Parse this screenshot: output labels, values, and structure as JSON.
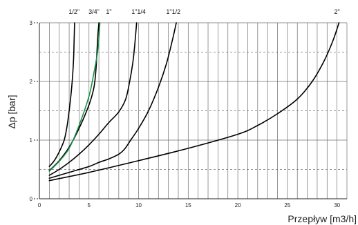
{
  "chart_data": {
    "type": "line",
    "title": "",
    "xlabel": "Przepływ [m3/h]",
    "ylabel": "Δp [bar]",
    "xlim": [
      0,
      31
    ],
    "ylim": [
      0,
      3
    ],
    "grid": true,
    "x_ticks": [
      0,
      5,
      10,
      15,
      20,
      25,
      30
    ],
    "x_tick_labels": [
      "0",
      "5",
      "10",
      "15",
      "20",
      "25",
      "30"
    ],
    "y_ticks": [
      0,
      1,
      2,
      3
    ],
    "y_tick_labels": [
      "0",
      "1",
      "2",
      "3"
    ],
    "series": [
      {
        "name": "1/2\"",
        "label_x": 3.5,
        "color": "#000000",
        "points": [
          [
            1,
            0.55
          ],
          [
            1.5,
            0.65
          ],
          [
            2,
            0.8
          ],
          [
            2.5,
            1.0
          ],
          [
            2.8,
            1.25
          ],
          [
            3.0,
            1.5
          ],
          [
            3.2,
            1.8
          ],
          [
            3.35,
            2.1
          ],
          [
            3.45,
            2.4
          ],
          [
            3.5,
            2.7
          ],
          [
            3.55,
            3.0
          ]
        ]
      },
      {
        "name": "3/4\"",
        "label_x": 5.5,
        "color": "#000000",
        "points": [
          [
            1,
            0.48
          ],
          [
            2,
            0.65
          ],
          [
            3,
            0.88
          ],
          [
            4,
            1.2
          ],
          [
            5,
            1.6
          ],
          [
            5.5,
            1.9
          ],
          [
            5.7,
            2.2
          ],
          [
            5.8,
            2.5
          ],
          [
            5.9,
            2.8
          ],
          [
            6.0,
            3.0
          ]
        ]
      },
      {
        "name": "3/4\" (green)",
        "label_x": null,
        "color": "#1a8f4a",
        "points": [
          [
            1,
            0.47
          ],
          [
            2,
            0.64
          ],
          [
            3,
            0.86
          ],
          [
            4,
            1.25
          ],
          [
            5,
            1.75
          ],
          [
            5.5,
            2.15
          ],
          [
            5.9,
            2.55
          ],
          [
            6.1,
            3.0
          ]
        ]
      },
      {
        "name": "1\"",
        "label_x": 7.0,
        "color": "#000000",
        "points": [
          [
            1,
            0.4
          ],
          [
            2,
            0.5
          ],
          [
            3,
            0.62
          ],
          [
            4,
            0.76
          ],
          [
            5,
            0.92
          ],
          [
            6,
            1.1
          ],
          [
            7,
            1.3
          ],
          [
            8,
            1.48
          ],
          [
            8.7,
            1.7
          ],
          [
            9.1,
            2.0
          ],
          [
            9.4,
            2.3
          ],
          [
            9.6,
            2.6
          ],
          [
            9.8,
            3.0
          ]
        ]
      },
      {
        "name": "1\"1/4",
        "label_x": 10.0,
        "color": "#000000",
        "points": [
          [
            1,
            0.35
          ],
          [
            3,
            0.45
          ],
          [
            5,
            0.55
          ],
          [
            6,
            0.62
          ],
          [
            7,
            0.68
          ],
          [
            8,
            0.76
          ],
          [
            8.6,
            0.85
          ],
          [
            9.2,
            1.0
          ],
          [
            10,
            1.2
          ],
          [
            11,
            1.5
          ],
          [
            12,
            1.9
          ],
          [
            12.8,
            2.3
          ],
          [
            13.4,
            2.7
          ],
          [
            13.8,
            3.0
          ]
        ]
      },
      {
        "name": "1\"1/2",
        "label_x": 13.5,
        "color": "#000000",
        "points": [
          [
            1,
            0.31
          ],
          [
            5,
            0.45
          ],
          [
            10,
            0.65
          ],
          [
            15,
            0.86
          ],
          [
            20,
            1.1
          ],
          [
            22,
            1.25
          ],
          [
            24,
            1.45
          ],
          [
            26,
            1.7
          ],
          [
            27.5,
            2.0
          ],
          [
            28.7,
            2.35
          ],
          [
            29.6,
            2.7
          ],
          [
            30.2,
            3.0
          ]
        ]
      }
    ],
    "top_labels": [
      {
        "text": "1/2\"",
        "x": 3.5
      },
      {
        "text": "3/4\"",
        "x": 5.5
      },
      {
        "text": "1\"",
        "x": 7.0
      },
      {
        "text": "1\"1/4",
        "x": 10.0
      },
      {
        "text": "1\"1/2",
        "x": 13.5
      },
      {
        "text": "2\"",
        "x": 30.0
      }
    ]
  }
}
